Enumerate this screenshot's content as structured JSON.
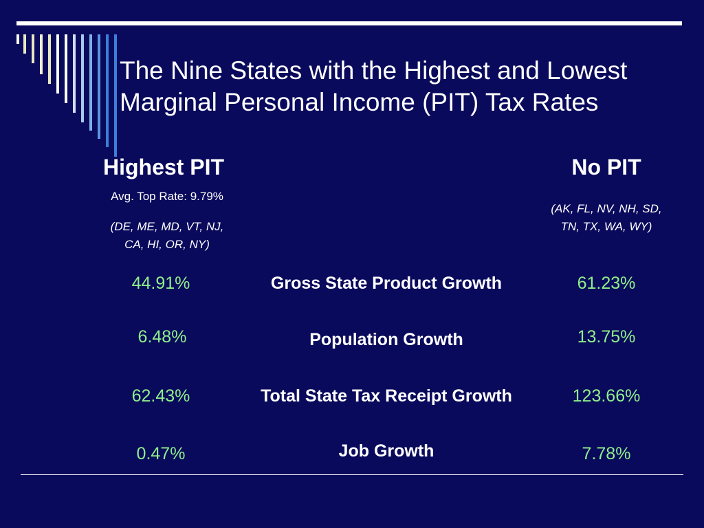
{
  "title_line1": "The Nine States with the Highest and Lowest",
  "title_line2": "Marginal Personal Income (PIT) Tax Rates",
  "left": {
    "heading": "Highest PIT",
    "avg_rate": "Avg. Top Rate: 9.79%",
    "states_line1": "(DE, ME, MD, VT, NJ,",
    "states_line2": "CA, HI, OR, NY)"
  },
  "right": {
    "heading": "No PIT",
    "states_line1": "(AK, FL, NV, NH, SD,",
    "states_line2": "TN, TX, WA, WY)"
  },
  "rows": [
    {
      "metric": "Gross State Product Growth",
      "highest": "44.91%",
      "none": "61.23%"
    },
    {
      "metric": "Population Growth",
      "highest": "6.48%",
      "none": "13.75%"
    },
    {
      "metric": "Total State Tax Receipt Growth",
      "highest": "62.43%",
      "none": "123.66%"
    },
    {
      "metric": "Job Growth",
      "highest": "0.47%",
      "none": "7.78%"
    }
  ],
  "colors": {
    "background": "#0a0a5c",
    "value_text": "#8ff089",
    "stripe_light": "#e8e8c0",
    "stripe_blue": "#3b7fd8"
  }
}
